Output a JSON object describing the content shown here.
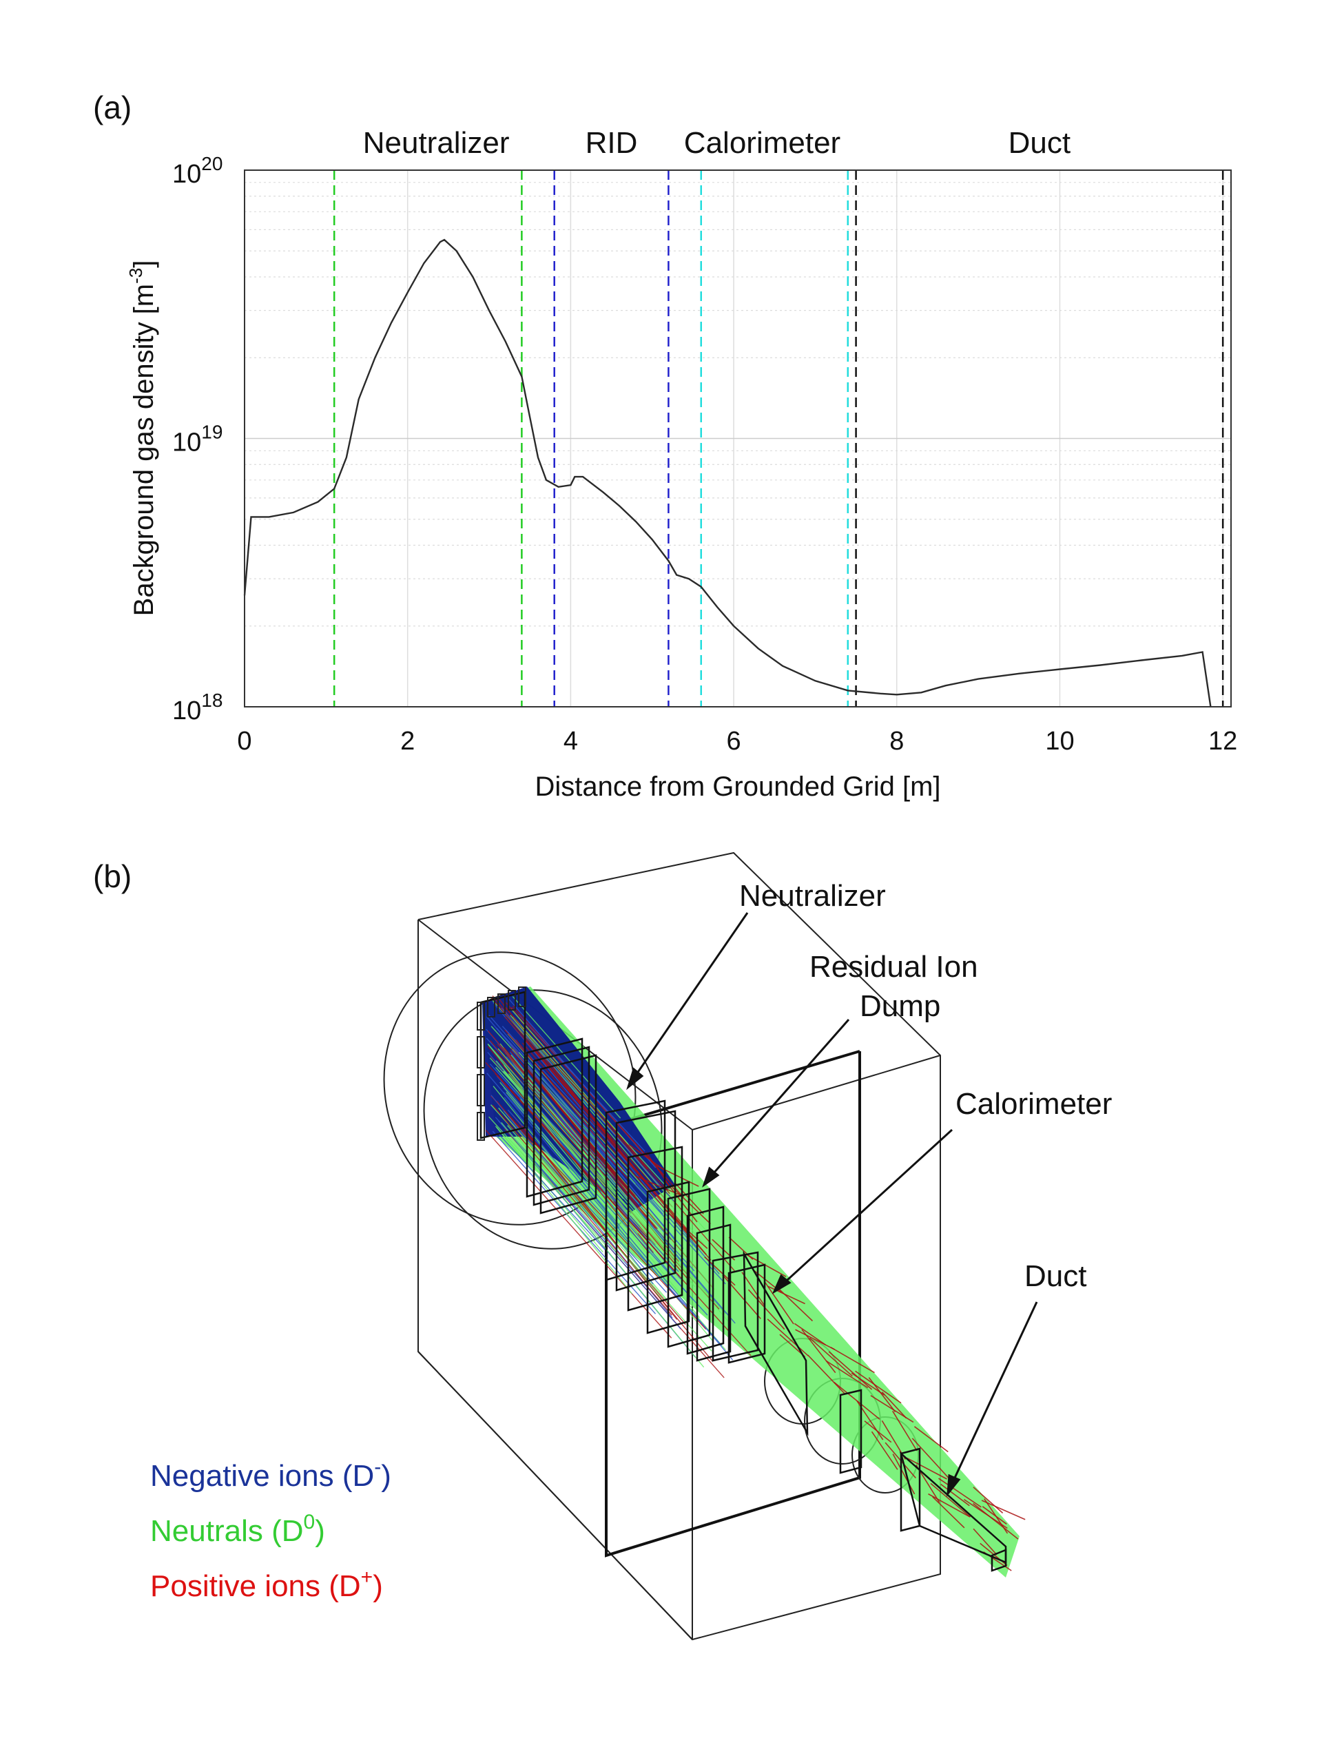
{
  "chart_data": [
    {
      "panel_label": "(a)",
      "type": "line",
      "xlabel": "Distance from Grounded Grid [m]",
      "ylabel_main": "Background gas density [m",
      "ylabel_exp": "-3",
      "ylabel_close": "]",
      "yscale": "log",
      "xlim": [
        0,
        12.1
      ],
      "ylim": [
        1e+18,
        1e+20
      ],
      "x_ticks": [
        0,
        2,
        4,
        6,
        8,
        10,
        12
      ],
      "x_tick_labels": [
        "0",
        "2",
        "4",
        "6",
        "8",
        "10",
        "12"
      ],
      "y_ticks": [
        {
          "value": 1e+18,
          "base": "10",
          "exp": "18"
        },
        {
          "value": 1e+19,
          "base": "10",
          "exp": "19"
        },
        {
          "value": 1e+20,
          "base": "10",
          "exp": "20"
        }
      ],
      "regions": [
        {
          "label": "Neutralizer",
          "x": 2.35
        },
        {
          "label": "RID",
          "x": 4.5
        },
        {
          "label": "Calorimeter",
          "x": 6.35
        },
        {
          "label": "Duct",
          "x": 9.75
        }
      ],
      "boundaries": [
        {
          "x": 1.1,
          "color": "#22cc22"
        },
        {
          "x": 3.4,
          "color": "#22cc22"
        },
        {
          "x": 3.8,
          "color": "#2222cc"
        },
        {
          "x": 5.2,
          "color": "#2222cc"
        },
        {
          "x": 5.6,
          "color": "#22dddd"
        },
        {
          "x": 7.4,
          "color": "#22dddd"
        },
        {
          "x": 7.5,
          "color": "#111111"
        },
        {
          "x": 12.0,
          "color": "#111111"
        }
      ],
      "series": [
        {
          "name": "background gas density",
          "color": "#222222",
          "points": [
            [
              0.0,
              2.6e+18
            ],
            [
              0.08,
              5.1e+18
            ],
            [
              0.3,
              5.1e+18
            ],
            [
              0.6,
              5.3e+18
            ],
            [
              0.9,
              5.8e+18
            ],
            [
              1.1,
              6.5e+18
            ],
            [
              1.25,
              8.5e+18
            ],
            [
              1.4,
              1.4e+19
            ],
            [
              1.6,
              2e+19
            ],
            [
              1.8,
              2.7e+19
            ],
            [
              2.0,
              3.5e+19
            ],
            [
              2.2,
              4.5e+19
            ],
            [
              2.4,
              5.4e+19
            ],
            [
              2.45,
              5.5e+19
            ],
            [
              2.6,
              5e+19
            ],
            [
              2.8,
              4e+19
            ],
            [
              3.0,
              3e+19
            ],
            [
              3.2,
              2.3e+19
            ],
            [
              3.4,
              1.7e+19
            ],
            [
              3.5,
              1.2e+19
            ],
            [
              3.6,
              8.5e+18
            ],
            [
              3.7,
              7e+18
            ],
            [
              3.85,
              6.6e+18
            ],
            [
              4.0,
              6.7e+18
            ],
            [
              4.05,
              7.2e+18
            ],
            [
              4.15,
              7.2e+18
            ],
            [
              4.4,
              6.3e+18
            ],
            [
              4.6,
              5.6e+18
            ],
            [
              4.8,
              4.9e+18
            ],
            [
              5.0,
              4.2e+18
            ],
            [
              5.2,
              3.5e+18
            ],
            [
              5.3,
              3.1e+18
            ],
            [
              5.45,
              3e+18
            ],
            [
              5.6,
              2.8e+18
            ],
            [
              5.8,
              2.35e+18
            ],
            [
              6.0,
              2e+18
            ],
            [
              6.3,
              1.65e+18
            ],
            [
              6.6,
              1.42e+18
            ],
            [
              7.0,
              1.25e+18
            ],
            [
              7.4,
              1.15e+18
            ],
            [
              7.8,
              1.12e+18
            ],
            [
              8.0,
              1.11e+18
            ],
            [
              8.3,
              1.13e+18
            ],
            [
              8.6,
              1.2e+18
            ],
            [
              9.0,
              1.27e+18
            ],
            [
              9.5,
              1.33e+18
            ],
            [
              10.0,
              1.38e+18
            ],
            [
              10.5,
              1.43e+18
            ],
            [
              11.0,
              1.49e+18
            ],
            [
              11.5,
              1.55e+18
            ],
            [
              11.75,
              1.6e+18
            ],
            [
              11.85,
              1e+18
            ]
          ]
        }
      ]
    },
    {
      "panel_label": "(b)",
      "type": "diagram",
      "callouts": {
        "neutralizer": "Neutralizer",
        "rid_line1": "Residual Ion",
        "rid_line2": "Dump",
        "calorimeter": "Calorimeter",
        "duct": "Duct"
      },
      "legend": [
        {
          "prefix": "Negative ions (D",
          "sup": "-",
          "suffix": ")",
          "color": "#1a3399"
        },
        {
          "prefix": "Neutrals (D",
          "sup": "0",
          "suffix": ")",
          "color": "#33cc33"
        },
        {
          "prefix": "Positive ions (D",
          "sup": "+",
          "suffix": ")",
          "color": "#dd1111"
        }
      ],
      "beam_colors": {
        "negative": "#0a1a8a",
        "neutral": "#66ee66",
        "positive": "#aa1111"
      }
    }
  ]
}
